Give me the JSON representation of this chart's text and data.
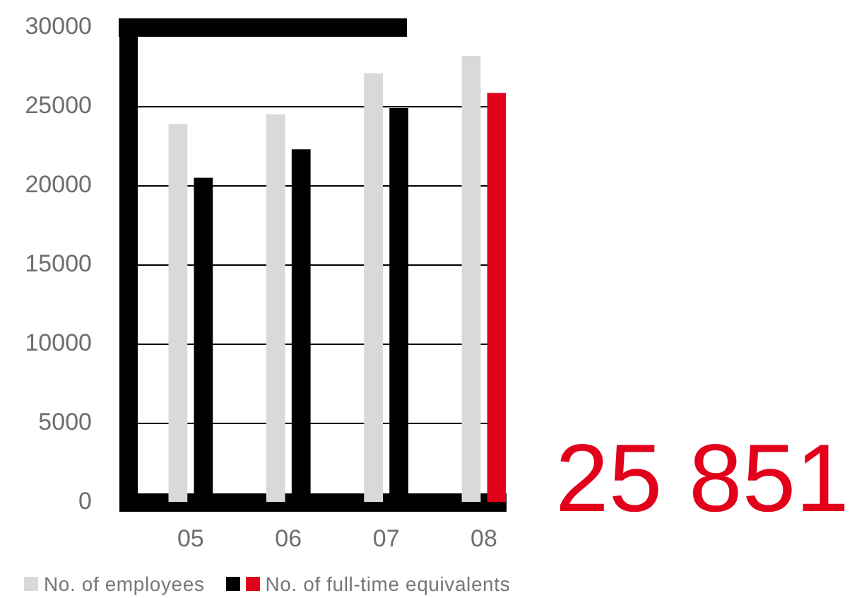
{
  "chart_data": {
    "type": "bar",
    "categories": [
      "05",
      "06",
      "07",
      "08"
    ],
    "series": [
      {
        "name": "No. of employees",
        "color": "#d9d9d9",
        "values": [
          23900,
          24500,
          27100,
          28200
        ]
      },
      {
        "name": "No. of full-time equivalents",
        "colors": [
          "#000000",
          "#000000",
          "#000000",
          "#e2001a"
        ],
        "values": [
          20500,
          22300,
          24900,
          25851
        ]
      }
    ],
    "ylim": [
      0,
      30000
    ],
    "yticks": [
      0,
      5000,
      10000,
      15000,
      20000,
      25000,
      30000
    ],
    "grid": "y",
    "legend": "bottom",
    "annotations": [
      "25 851"
    ]
  }
}
